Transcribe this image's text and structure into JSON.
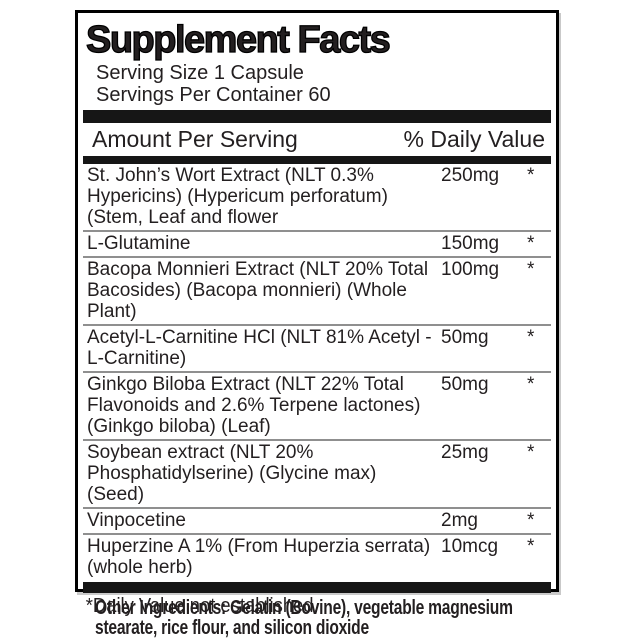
{
  "label": {
    "title": "Supplement Facts",
    "serving_size": "Serving Size 1 Capsule",
    "servings_per_container": "Servings Per Container 60",
    "column_headers": {
      "amount": "Amount Per Serving",
      "daily_value": "% Daily Value"
    },
    "rows": [
      {
        "name": "St. John’s Wort Extract (NLT 0.3% Hypericins) (Hypericum perforatum) (Stem, Leaf and flower",
        "amount": "250mg",
        "daily_value": "*"
      },
      {
        "name": "L-Glutamine",
        "amount": "150mg",
        "daily_value": "*"
      },
      {
        "name": "Bacopa Monnieri Extract (NLT 20% Total Bacosides) (Bacopa monnieri) (Whole Plant)",
        "amount": "100mg",
        "daily_value": "*"
      },
      {
        "name": "Acetyl-L-Carnitine HCl (NLT 81% Acetyl -L-Carnitine)",
        "amount": "50mg",
        "daily_value": "*"
      },
      {
        "name": "Ginkgo Biloba Extract (NLT 22% Total Flavonoids and 2.6% Terpene lactones) (Ginkgo biloba) (Leaf)",
        "amount": "50mg",
        "daily_value": "*"
      },
      {
        "name": "Soybean extract (NLT 20% Phosphatidylserine) (Glycine max) (Seed)",
        "amount": "25mg",
        "daily_value": "*"
      },
      {
        "name": "Vinpocetine",
        "amount": "2mg",
        "daily_value": "*"
      },
      {
        "name": "Huperzine A 1% (From Huperzia serrata) (whole herb)",
        "amount": "10mcg",
        "daily_value": "*"
      }
    ],
    "footnote": "*Daily Value not established.",
    "other_ingredients": "Other Ingredients: Gelatin (Bovine), vegetable magnesium stearate, rice flour, and silicon dioxide"
  },
  "colors": {
    "border": "#000000",
    "thick_bar": "#161616",
    "row_separator": "#8f8f8f",
    "text": "#231f20",
    "background": "#ffffff"
  }
}
